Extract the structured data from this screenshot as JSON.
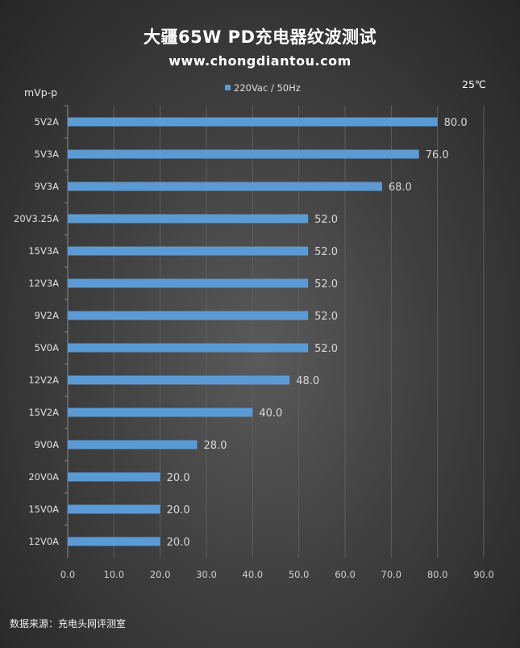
{
  "title": "大疆65W  PD充电器纹波测试",
  "subtitle": "www.chongdiantou.com",
  "source": "数据来源：充电头网评测室",
  "chart_data": {
    "type": "bar",
    "orientation": "horizontal",
    "unit_label": "mVp-p",
    "temperature_label": "25℃",
    "legend": {
      "position": "top",
      "entries": [
        "220Vac / 50Hz"
      ]
    },
    "grid": true,
    "bar_color": "#5b9bd5",
    "categories": [
      "5V2A",
      "5V3A",
      "9V3A",
      "20V3.25A",
      "15V3A",
      "12V3A",
      "9V2A",
      "5V0A",
      "12V2A",
      "15V2A",
      "9V0A",
      "20V0A",
      "15V0A",
      "12V0A"
    ],
    "series": [
      {
        "name": "220Vac / 50Hz",
        "values": [
          80.0,
          76.0,
          68.0,
          52.0,
          52.0,
          52.0,
          52.0,
          52.0,
          48.0,
          40.0,
          28.0,
          20.0,
          20.0,
          20.0
        ]
      }
    ],
    "xlim": [
      0,
      90
    ],
    "xticks": [
      "0.0",
      "10.0",
      "20.0",
      "30.0",
      "40.0",
      "50.0",
      "60.0",
      "70.0",
      "80.0",
      "90.0"
    ]
  }
}
